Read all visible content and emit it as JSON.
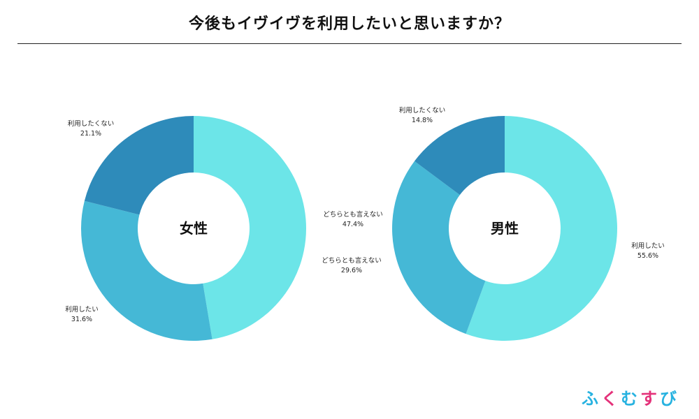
{
  "title": "今後もイヴイヴを利用したいと思いますか？",
  "colors": {
    "want": "#6ce5e8",
    "neutral": "#45b8d6",
    "not_want": "#2e8bba"
  },
  "logo": {
    "text": "ふくむすび",
    "colors": [
      "#27b2e0",
      "#e4327a"
    ]
  },
  "chart_data": [
    {
      "type": "pie",
      "center_label": "女性",
      "slices": [
        {
          "label": "どちらとも言えない",
          "value": 47.4,
          "value_text": "47.4%",
          "color_key": "want"
        },
        {
          "label": "利用したい",
          "value": 31.6,
          "value_text": "31.6%",
          "color_key": "neutral"
        },
        {
          "label": "利用したくない",
          "value": 21.1,
          "value_text": "21.1%",
          "color_key": "not_want"
        }
      ]
    },
    {
      "type": "pie",
      "center_label": "男性",
      "slices": [
        {
          "label": "利用したい",
          "value": 55.6,
          "value_text": "55.6%",
          "color_key": "want"
        },
        {
          "label": "どちらとも言えない",
          "value": 29.6,
          "value_text": "29.6%",
          "color_key": "neutral"
        },
        {
          "label": "利用したくない",
          "value": 14.8,
          "value_text": "14.8%",
          "color_key": "not_want"
        }
      ]
    }
  ]
}
